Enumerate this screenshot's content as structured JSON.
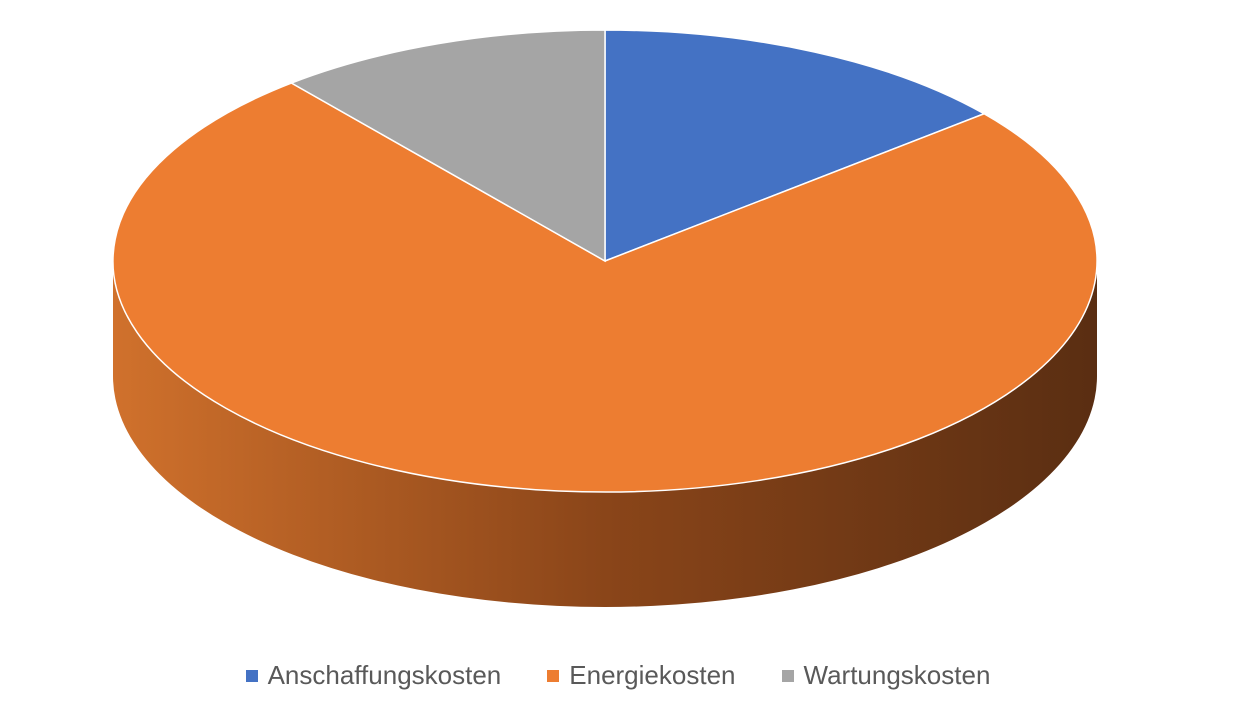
{
  "chart_data": {
    "type": "pie3d",
    "categories": [
      "Anschaffungskosten",
      "Energiekosten",
      "Wartungskosten"
    ],
    "values": [
      14,
      75,
      11
    ],
    "colors": [
      "#4472c4",
      "#ed7d31",
      "#a5a5a5"
    ],
    "legend": "bottom"
  }
}
